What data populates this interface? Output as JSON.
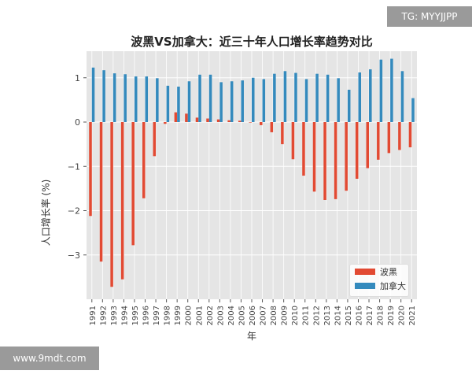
{
  "watermarks": {
    "top_right": "TG: MYYJJPP",
    "bottom_left": "www.9mdt.com"
  },
  "chart_data": {
    "type": "bar",
    "title": "波黑VS加拿大：近三十年人口增长率趋势对比",
    "xlabel": "年",
    "ylabel": "人口增长率 (%)",
    "ylim": [
      -4.0,
      1.6
    ],
    "yticks": [
      1,
      0,
      -1,
      -2,
      -3
    ],
    "grid": true,
    "legend_position": "bottom-right",
    "categories": [
      "1991",
      "1992",
      "1993",
      "1994",
      "1995",
      "1996",
      "1997",
      "1998",
      "1999",
      "2000",
      "2001",
      "2002",
      "2003",
      "2004",
      "2005",
      "2006",
      "2007",
      "2008",
      "2009",
      "2010",
      "2011",
      "2012",
      "2013",
      "2014",
      "2015",
      "2016",
      "2017",
      "2018",
      "2019",
      "2020",
      "2021"
    ],
    "series": [
      {
        "name": "波黑",
        "color": "#e24a33",
        "values": [
          -2.12,
          -3.15,
          -3.72,
          -3.55,
          -2.78,
          -1.72,
          -0.77,
          -0.04,
          0.22,
          0.19,
          0.1,
          0.08,
          0.06,
          0.04,
          0.03,
          0.0,
          -0.07,
          -0.23,
          -0.5,
          -0.84,
          -1.21,
          -1.57,
          -1.76,
          -1.74,
          -1.55,
          -1.28,
          -1.04,
          -0.85,
          -0.7,
          -0.63,
          -0.57
        ]
      },
      {
        "name": "加拿大",
        "color": "#348abd",
        "values": [
          1.23,
          1.17,
          1.1,
          1.08,
          1.03,
          1.03,
          0.99,
          0.82,
          0.8,
          0.92,
          1.07,
          1.07,
          0.9,
          0.92,
          0.94,
          1.0,
          0.97,
          1.09,
          1.15,
          1.11,
          0.97,
          1.09,
          1.07,
          0.99,
          0.73,
          1.12,
          1.19,
          1.41,
          1.43,
          1.15,
          0.54
        ]
      }
    ]
  }
}
